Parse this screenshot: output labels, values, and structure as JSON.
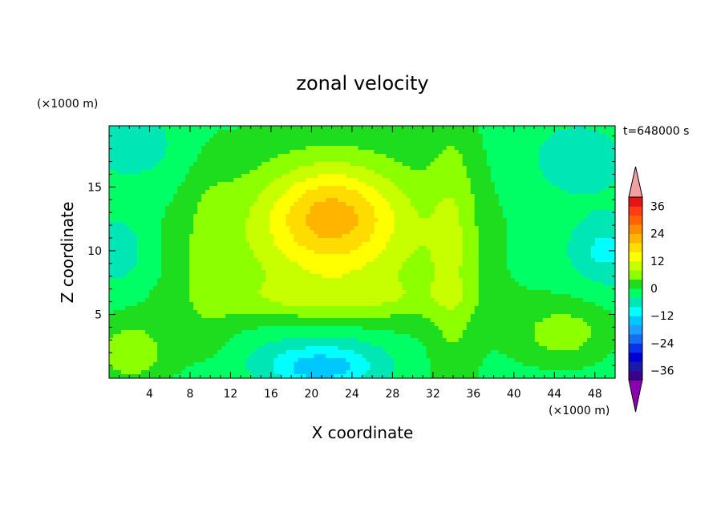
{
  "chart_data": {
    "type": "heatmap",
    "title": "zonal velocity",
    "xlabel": "X coordinate",
    "ylabel": "Z coordinate",
    "x_unit": "(×1000 m)",
    "y_unit": "(×1000 m)",
    "time_label": "t=648000 s",
    "xlim": [
      0,
      50
    ],
    "ylim": [
      0,
      19.8
    ],
    "x_ticks": [
      4,
      8,
      12,
      16,
      20,
      24,
      28,
      32,
      36,
      40,
      44,
      48
    ],
    "y_ticks": [
      5,
      10,
      15
    ],
    "colorbar": {
      "levels": [
        -40,
        -36,
        -32,
        -28,
        -24,
        -20,
        -16,
        -12,
        -8,
        -4,
        0,
        4,
        8,
        12,
        16,
        20,
        24,
        28,
        32,
        36,
        40
      ],
      "tick_values": [
        -36,
        -24,
        -12,
        0,
        12,
        24,
        36
      ],
      "tick_labels": [
        "−36",
        "−24",
        "−12",
        "0",
        "12",
        "24",
        "36"
      ],
      "colors": [
        "#3c0090",
        "#1a1aa6",
        "#0000d2",
        "#0a32e8",
        "#1470f0",
        "#1e9eff",
        "#00c8ff",
        "#00ffff",
        "#00e6b4",
        "#00ff64",
        "#1edc1e",
        "#8cff00",
        "#c8ff00",
        "#ffff00",
        "#ffdc00",
        "#ffb400",
        "#ff8c00",
        "#ff6400",
        "#ff3c14",
        "#e61414"
      ],
      "under_color": "#8c00b4",
      "over_color": "#f0a0a0"
    },
    "features": [
      {
        "x": 22,
        "z": 13,
        "sx": 6,
        "sz": 3.5,
        "value": 12
      },
      {
        "x": 22,
        "z": 11,
        "sx": 11,
        "sz": 6.5,
        "value": 9
      },
      {
        "x": 22,
        "z": 9.5,
        "sx": 17,
        "sz": 11,
        "value": 5
      },
      {
        "x": 34,
        "z": 10,
        "sx": 2.5,
        "sz": 13,
        "value": 6
      },
      {
        "x": 10,
        "z": 9,
        "sx": 2.5,
        "sz": 8,
        "value": 4
      },
      {
        "x": 22,
        "z": 6.3,
        "sx": 13,
        "sz": 1.4,
        "value": 4
      },
      {
        "x": 45,
        "z": 3.5,
        "sx": 5,
        "sz": 2.5,
        "value": 8
      },
      {
        "x": 2,
        "z": 2,
        "sx": 4,
        "sz": 2.5,
        "value": 9
      },
      {
        "x": 21,
        "z": 1.8,
        "sx": 8,
        "sz": 2.6,
        "value": -10
      },
      {
        "x": 21,
        "z": 0.7,
        "sx": 4.5,
        "sz": 1.2,
        "value": -8
      },
      {
        "x": 49,
        "z": 10,
        "sx": 3.5,
        "sz": 2.5,
        "value": -7
      },
      {
        "x": 1,
        "z": 10,
        "sx": 2.5,
        "sz": 2.5,
        "value": -6
      },
      {
        "x": 46,
        "z": 17,
        "sx": 5,
        "sz": 3,
        "value": -4
      },
      {
        "x": 3,
        "z": 18,
        "sx": 5,
        "sz": 3,
        "value": -4
      }
    ],
    "base_value": -2.5,
    "grid": false,
    "legend_placement": "right"
  }
}
